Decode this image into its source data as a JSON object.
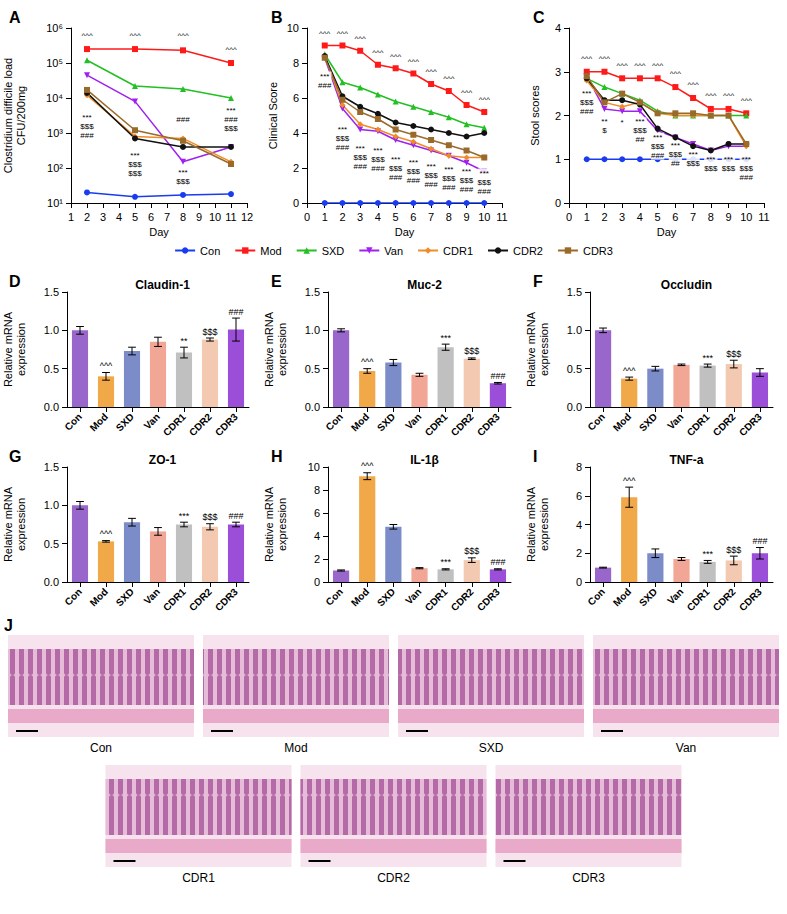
{
  "chart_data": [
    {
      "type": "line",
      "panel": "A",
      "xlabel": "Day",
      "ylabel": "Clostridium difficile load CFU/200mg",
      "log": "y",
      "grid": false,
      "legend": "bottom",
      "x": [
        2,
        5,
        8,
        11
      ],
      "xlim": [
        1,
        12
      ],
      "xticks": [
        1,
        2,
        3,
        4,
        5,
        6,
        7,
        8,
        9,
        10,
        11,
        12
      ],
      "ylim": [
        10,
        1000000
      ],
      "yticks": [
        {
          "value": 10,
          "label": "10¹"
        },
        {
          "value": 100,
          "label": "10²"
        },
        {
          "value": 1000,
          "label": "10³"
        },
        {
          "value": 10000,
          "label": "10⁴"
        },
        {
          "value": 100000,
          "label": "10⁵"
        },
        {
          "value": 1000000,
          "label": "10⁶"
        }
      ],
      "series": [
        {
          "name": "Con",
          "color": "#1a3cf0",
          "marker": "circle",
          "values": [
            20,
            15,
            17,
            18
          ]
        },
        {
          "name": "Mod",
          "color": "#ff1a1a",
          "marker": "square",
          "values": [
            250000,
            250000,
            230000,
            100000
          ]
        },
        {
          "name": "SXD",
          "color": "#22c022",
          "marker": "triangle",
          "values": [
            120000,
            22000,
            18000,
            10000
          ]
        },
        {
          "name": "Van",
          "color": "#a020f0",
          "marker": "triangle-down",
          "values": [
            45000,
            8000,
            150,
            400
          ]
        },
        {
          "name": "CDR1",
          "color": "#f08c28",
          "marker": "diamond",
          "values": [
            12000,
            800,
            700,
            150
          ]
        },
        {
          "name": "CDR2",
          "color": "#111111",
          "marker": "circle",
          "values": [
            14000,
            700,
            400,
            400
          ]
        },
        {
          "name": "CDR3",
          "color": "#9a6a2a",
          "marker": "square",
          "values": [
            17000,
            1200,
            600,
            130
          ]
        }
      ],
      "annotations": [
        {
          "x": 2,
          "y": 600000,
          "text": "^^^"
        },
        {
          "x": 5,
          "y": 600000,
          "text": "^^^"
        },
        {
          "x": 8,
          "y": 600000,
          "text": "^^^"
        },
        {
          "x": 11,
          "y": 250000,
          "text": "^^^"
        },
        {
          "x": 2,
          "y": 1500,
          "text": "***\n$$$\n###"
        },
        {
          "x": 5,
          "y": 130,
          "text": "***\n$$$\n$$$"
        },
        {
          "x": 8,
          "y": 2500,
          "text": "###"
        },
        {
          "x": 8,
          "y": 55,
          "text": "***\n$$$"
        },
        {
          "x": 11,
          "y": 2500,
          "text": "***\n###\n$$$"
        }
      ]
    },
    {
      "type": "line",
      "panel": "B",
      "xlabel": "Day",
      "ylabel": "Clinical Score",
      "grid": false,
      "x": [
        1,
        2,
        3,
        4,
        5,
        6,
        7,
        8,
        9,
        10
      ],
      "xlim": [
        0,
        11
      ],
      "xticks": [
        0,
        1,
        2,
        3,
        4,
        5,
        6,
        7,
        8,
        9,
        10,
        11
      ],
      "ylim": [
        0,
        10
      ],
      "yticks": [
        0,
        2,
        4,
        6,
        8,
        10
      ],
      "series": [
        {
          "name": "Con",
          "color": "#1a3cf0",
          "marker": "circle",
          "values": [
            0,
            0,
            0,
            0,
            0,
            0,
            0,
            0,
            0,
            0
          ]
        },
        {
          "name": "Mod",
          "color": "#ff1a1a",
          "marker": "square",
          "values": [
            9,
            9,
            8.7,
            7.9,
            7.7,
            7.4,
            6.8,
            6.4,
            5.6,
            5.2
          ]
        },
        {
          "name": "SXD",
          "color": "#22c022",
          "marker": "triangle",
          "values": [
            8.5,
            6.9,
            6.6,
            6.2,
            5.8,
            5.5,
            5.2,
            4.9,
            4.5,
            4.3
          ]
        },
        {
          "name": "Van",
          "color": "#a020f0",
          "marker": "triangle-down",
          "values": [
            8.3,
            5.4,
            4.2,
            4.1,
            3.6,
            3.3,
            3.0,
            2.7,
            2.3,
            1.8
          ]
        },
        {
          "name": "CDR1",
          "color": "#f08c28",
          "marker": "diamond",
          "values": [
            8.4,
            5.6,
            4.5,
            4.2,
            3.8,
            3.5,
            3.1,
            2.7,
            2.6,
            2.6
          ]
        },
        {
          "name": "CDR2",
          "color": "#111111",
          "marker": "circle",
          "values": [
            8.4,
            6.1,
            5.5,
            5.1,
            4.6,
            4.4,
            4.2,
            4.0,
            3.8,
            4.0
          ]
        },
        {
          "name": "CDR3",
          "color": "#9a6a2a",
          "marker": "square",
          "values": [
            8.3,
            5.9,
            5.2,
            4.8,
            4.2,
            3.9,
            3.6,
            3.3,
            3.0,
            2.6
          ]
        }
      ],
      "annotations": [
        {
          "x": 1,
          "y": 9.7,
          "text": "^^^"
        },
        {
          "x": 2,
          "y": 9.7,
          "text": "^^^"
        },
        {
          "x": 3,
          "y": 9.4,
          "text": "^^^"
        },
        {
          "x": 4,
          "y": 8.6,
          "text": "^^^"
        },
        {
          "x": 5,
          "y": 8.4,
          "text": "^^^"
        },
        {
          "x": 6,
          "y": 8.1,
          "text": "^^^"
        },
        {
          "x": 7,
          "y": 7.5,
          "text": "^^^"
        },
        {
          "x": 8,
          "y": 7.1,
          "text": "^^^"
        },
        {
          "x": 9,
          "y": 6.3,
          "text": "^^^"
        },
        {
          "x": 10,
          "y": 5.9,
          "text": "^^^"
        },
        {
          "x": 1,
          "y": 7.0,
          "text": "***\n###"
        },
        {
          "x": 2,
          "y": 3.7,
          "text": "***\n$$$\n###"
        },
        {
          "x": 3,
          "y": 2.6,
          "text": "***\n$$$\n###"
        },
        {
          "x": 4,
          "y": 2.5,
          "text": "***\n$$$\n###"
        },
        {
          "x": 5,
          "y": 2.0,
          "text": "***\n$$$\n###"
        },
        {
          "x": 6,
          "y": 1.8,
          "text": "***\n$$$\n###"
        },
        {
          "x": 7,
          "y": 1.6,
          "text": "***\n$$$\n###"
        },
        {
          "x": 8,
          "y": 1.4,
          "text": "***\n$$$\n###"
        },
        {
          "x": 9,
          "y": 1.3,
          "text": "***\n$$$\n###"
        },
        {
          "x": 10,
          "y": 1.2,
          "text": "***\n$$$\n###"
        }
      ]
    },
    {
      "type": "line",
      "panel": "C",
      "xlabel": "Day",
      "ylabel": "Stool scores",
      "grid": false,
      "x": [
        1,
        2,
        3,
        4,
        5,
        6,
        7,
        8,
        9,
        10
      ],
      "xlim": [
        0,
        11
      ],
      "xticks": [
        0,
        1,
        2,
        3,
        4,
        5,
        6,
        7,
        8,
        9,
        10,
        11
      ],
      "ylim": [
        0,
        4
      ],
      "yticks": [
        0,
        1,
        2,
        3,
        4
      ],
      "series": [
        {
          "name": "Con",
          "color": "#1a3cf0",
          "marker": "circle",
          "values": [
            1,
            1,
            1,
            1,
            1,
            1,
            1,
            1,
            1,
            1
          ]
        },
        {
          "name": "Mod",
          "color": "#ff1a1a",
          "marker": "square",
          "values": [
            3,
            3,
            2.85,
            2.85,
            2.85,
            2.65,
            2.4,
            2.15,
            2.15,
            2.05
          ]
        },
        {
          "name": "SXD",
          "color": "#22c022",
          "marker": "triangle",
          "values": [
            2.85,
            2.65,
            2.5,
            2.35,
            2.1,
            2.0,
            2.0,
            2.0,
            2.0,
            2.0
          ]
        },
        {
          "name": "Van",
          "color": "#a020f0",
          "marker": "triangle-down",
          "values": [
            2.9,
            2.15,
            2.1,
            2.1,
            1.65,
            1.5,
            1.35,
            1.2,
            1.3,
            1.3
          ]
        },
        {
          "name": "CDR1",
          "color": "#f08c28",
          "marker": "diamond",
          "values": [
            2.8,
            2.3,
            2.2,
            2.3,
            2.05,
            2.0,
            2.0,
            2.0,
            2.0,
            1.3
          ]
        },
        {
          "name": "CDR2",
          "color": "#111111",
          "marker": "circle",
          "values": [
            2.85,
            2.35,
            2.35,
            2.25,
            1.7,
            1.5,
            1.3,
            1.2,
            1.35,
            1.35
          ]
        },
        {
          "name": "CDR3",
          "color": "#9a6a2a",
          "marker": "square",
          "values": [
            2.9,
            2.3,
            2.5,
            2.3,
            2.05,
            2.05,
            2.05,
            2.0,
            2.0,
            1.35
          ]
        }
      ],
      "annotations": [
        {
          "x": 1,
          "y": 3.3,
          "text": "^^^"
        },
        {
          "x": 2,
          "y": 3.3,
          "text": "^^^"
        },
        {
          "x": 3,
          "y": 3.15,
          "text": "^^^"
        },
        {
          "x": 4,
          "y": 3.15,
          "text": "^^^"
        },
        {
          "x": 5,
          "y": 3.15,
          "text": "^^^"
        },
        {
          "x": 6,
          "y": 2.95,
          "text": "^^^"
        },
        {
          "x": 7,
          "y": 2.7,
          "text": "^^^"
        },
        {
          "x": 8,
          "y": 2.45,
          "text": "^^^"
        },
        {
          "x": 9,
          "y": 2.45,
          "text": "^^^"
        },
        {
          "x": 10,
          "y": 2.35,
          "text": "^^^"
        },
        {
          "x": 1,
          "y": 2.3,
          "text": "***\n$$$\n###"
        },
        {
          "x": 2,
          "y": 1.75,
          "text": "**\n$"
        },
        {
          "x": 3,
          "y": 1.85,
          "text": "*"
        },
        {
          "x": 4,
          "y": 1.65,
          "text": "***\n$$$\n##"
        },
        {
          "x": 5,
          "y": 1.3,
          "text": "***\n$$$\n###"
        },
        {
          "x": 6,
          "y": 1.1,
          "text": "***\n$$$\n##"
        },
        {
          "x": 7,
          "y": 1.0,
          "text": "***\n$$$"
        },
        {
          "x": 8,
          "y": 0.9,
          "text": "***\n$$$"
        },
        {
          "x": 9,
          "y": 0.9,
          "text": "***\n$$$"
        },
        {
          "x": 10,
          "y": 0.8,
          "text": "***\n$$$\n###"
        }
      ]
    },
    {
      "type": "bar",
      "panel": "D",
      "title": "Claudin-1",
      "ylabel": "Relative mRNA expression",
      "grid": false,
      "categories": [
        "Con",
        "Mod",
        "SXD",
        "Van",
        "CDR1",
        "CDR2",
        "CDR3"
      ],
      "colors": [
        "#9966cc",
        "#f0a848",
        "#7b8cc8",
        "#f2a696",
        "#c0c0c0",
        "#f3c9b1",
        "#9b4fd8"
      ],
      "values": [
        1.0,
        0.4,
        0.73,
        0.85,
        0.71,
        0.88,
        1.01
      ],
      "errors": [
        0.05,
        0.05,
        0.05,
        0.06,
        0.07,
        0.02,
        0.15
      ],
      "ylim": [
        0,
        1.5
      ],
      "yticks": [
        {
          "value": 0,
          "label": "0.0"
        },
        0.5,
        {
          "value": 1,
          "label": "1.0"
        },
        1.5
      ],
      "annotations": [
        {
          "category": "Mod",
          "text": "^^^"
        },
        {
          "category": "CDR1",
          "text": "**"
        },
        {
          "category": "CDR2",
          "text": "$$$"
        },
        {
          "category": "CDR3",
          "text": "###"
        }
      ]
    },
    {
      "type": "bar",
      "panel": "E",
      "title": "Muc-2",
      "ylabel": "Relative mRNA expression",
      "grid": false,
      "categories": [
        "Con",
        "Mod",
        "SXD",
        "Van",
        "CDR1",
        "CDR2",
        "CDR3"
      ],
      "colors": [
        "#9966cc",
        "#f0a848",
        "#7b8cc8",
        "#f2a696",
        "#c0c0c0",
        "#f3c9b1",
        "#9b4fd8"
      ],
      "values": [
        1.0,
        0.47,
        0.58,
        0.42,
        0.78,
        0.63,
        0.31
      ],
      "errors": [
        0.02,
        0.03,
        0.04,
        0.02,
        0.04,
        0.01,
        0.01
      ],
      "ylim": [
        0,
        1.5
      ],
      "yticks": [
        {
          "value": 0,
          "label": "0.0"
        },
        0.5,
        {
          "value": 1,
          "label": "1.0"
        },
        1.5
      ],
      "annotations": [
        {
          "category": "Mod",
          "text": "^^^"
        },
        {
          "category": "CDR1",
          "text": "***"
        },
        {
          "category": "CDR2",
          "text": "$$$"
        },
        {
          "category": "CDR3",
          "text": "###"
        }
      ]
    },
    {
      "type": "bar",
      "panel": "F",
      "title": "Occludin",
      "ylabel": "Relative mRNA expression",
      "grid": false,
      "categories": [
        "Con",
        "Mod",
        "SXD",
        "Van",
        "CDR1",
        "CDR2",
        "CDR3"
      ],
      "colors": [
        "#9966cc",
        "#f0a848",
        "#7b8cc8",
        "#f2a696",
        "#c0c0c0",
        "#f3c9b1",
        "#9b4fd8"
      ],
      "values": [
        1.0,
        0.37,
        0.5,
        0.55,
        0.54,
        0.56,
        0.45
      ],
      "errors": [
        0.03,
        0.02,
        0.03,
        0.01,
        0.02,
        0.05,
        0.05
      ],
      "ylim": [
        0,
        1.5
      ],
      "yticks": [
        {
          "value": 0,
          "label": "0.0"
        },
        0.5,
        {
          "value": 1,
          "label": "1.0"
        },
        1.5
      ],
      "annotations": [
        {
          "category": "Mod",
          "text": "^^^"
        },
        {
          "category": "CDR1",
          "text": "***"
        },
        {
          "category": "CDR2",
          "text": "$$$"
        }
      ]
    },
    {
      "type": "bar",
      "panel": "G",
      "title": "ZO-1",
      "ylabel": "Relative mRNA expression",
      "grid": false,
      "categories": [
        "Con",
        "Mod",
        "SXD",
        "Van",
        "CDR1",
        "CDR2",
        "CDR3"
      ],
      "colors": [
        "#9966cc",
        "#f0a848",
        "#7b8cc8",
        "#f2a696",
        "#c0c0c0",
        "#f3c9b1",
        "#9b4fd8"
      ],
      "values": [
        1.0,
        0.53,
        0.78,
        0.66,
        0.75,
        0.72,
        0.75
      ],
      "errors": [
        0.05,
        0.01,
        0.05,
        0.05,
        0.03,
        0.04,
        0.03
      ],
      "ylim": [
        0,
        1.5
      ],
      "yticks": [
        {
          "value": 0,
          "label": "0.0"
        },
        0.5,
        {
          "value": 1,
          "label": "1.0"
        },
        1.5
      ],
      "annotations": [
        {
          "category": "Mod",
          "text": "^^^"
        },
        {
          "category": "CDR1",
          "text": "***"
        },
        {
          "category": "CDR2",
          "text": "$$$"
        },
        {
          "category": "CDR3",
          "text": "###"
        }
      ]
    },
    {
      "type": "bar",
      "panel": "H",
      "title": "IL-1β",
      "ylabel": "Relative mRNA expression",
      "grid": false,
      "categories": [
        "Con",
        "Mod",
        "SXD",
        "Van",
        "CDR1",
        "CDR2",
        "CDR3"
      ],
      "colors": [
        "#9966cc",
        "#f0a848",
        "#7b8cc8",
        "#f2a696",
        "#c0c0c0",
        "#f3c9b1",
        "#9b4fd8"
      ],
      "values": [
        1.0,
        9.2,
        4.8,
        1.2,
        1.1,
        1.9,
        1.1
      ],
      "errors": [
        0.05,
        0.3,
        0.2,
        0.05,
        0.05,
        0.2,
        0.05
      ],
      "ylim": [
        0,
        10
      ],
      "yticks": [
        0,
        2,
        4,
        6,
        8,
        10
      ],
      "annotations": [
        {
          "category": "Mod",
          "text": "^^^"
        },
        {
          "category": "CDR1",
          "text": "***"
        },
        {
          "category": "CDR2",
          "text": "$$$"
        },
        {
          "category": "CDR3",
          "text": "###"
        }
      ]
    },
    {
      "type": "bar",
      "panel": "I",
      "title": "TNF-a",
      "ylabel": "Relative mRNA expression",
      "grid": false,
      "categories": [
        "Con",
        "Mod",
        "SXD",
        "Van",
        "CDR1",
        "CDR2",
        "CDR3"
      ],
      "colors": [
        "#9966cc",
        "#f0a848",
        "#7b8cc8",
        "#f2a696",
        "#c0c0c0",
        "#f3c9b1",
        "#9b4fd8"
      ],
      "values": [
        1.0,
        5.9,
        2.0,
        1.6,
        1.4,
        1.5,
        2.0
      ],
      "errors": [
        0.03,
        0.7,
        0.3,
        0.1,
        0.1,
        0.3,
        0.4
      ],
      "ylim": [
        0,
        8
      ],
      "yticks": [
        0,
        2,
        4,
        6,
        8
      ],
      "annotations": [
        {
          "category": "Mod",
          "text": "^^^"
        },
        {
          "category": "CDR1",
          "text": "***"
        },
        {
          "category": "CDR2",
          "text": "$$$"
        },
        {
          "category": "CDR3",
          "text": "###"
        }
      ]
    }
  ],
  "panel_J": {
    "panel": "J",
    "labels": [
      "Con",
      "Mod",
      "SXD",
      "Van",
      "CDR1",
      "CDR2",
      "CDR3"
    ]
  }
}
